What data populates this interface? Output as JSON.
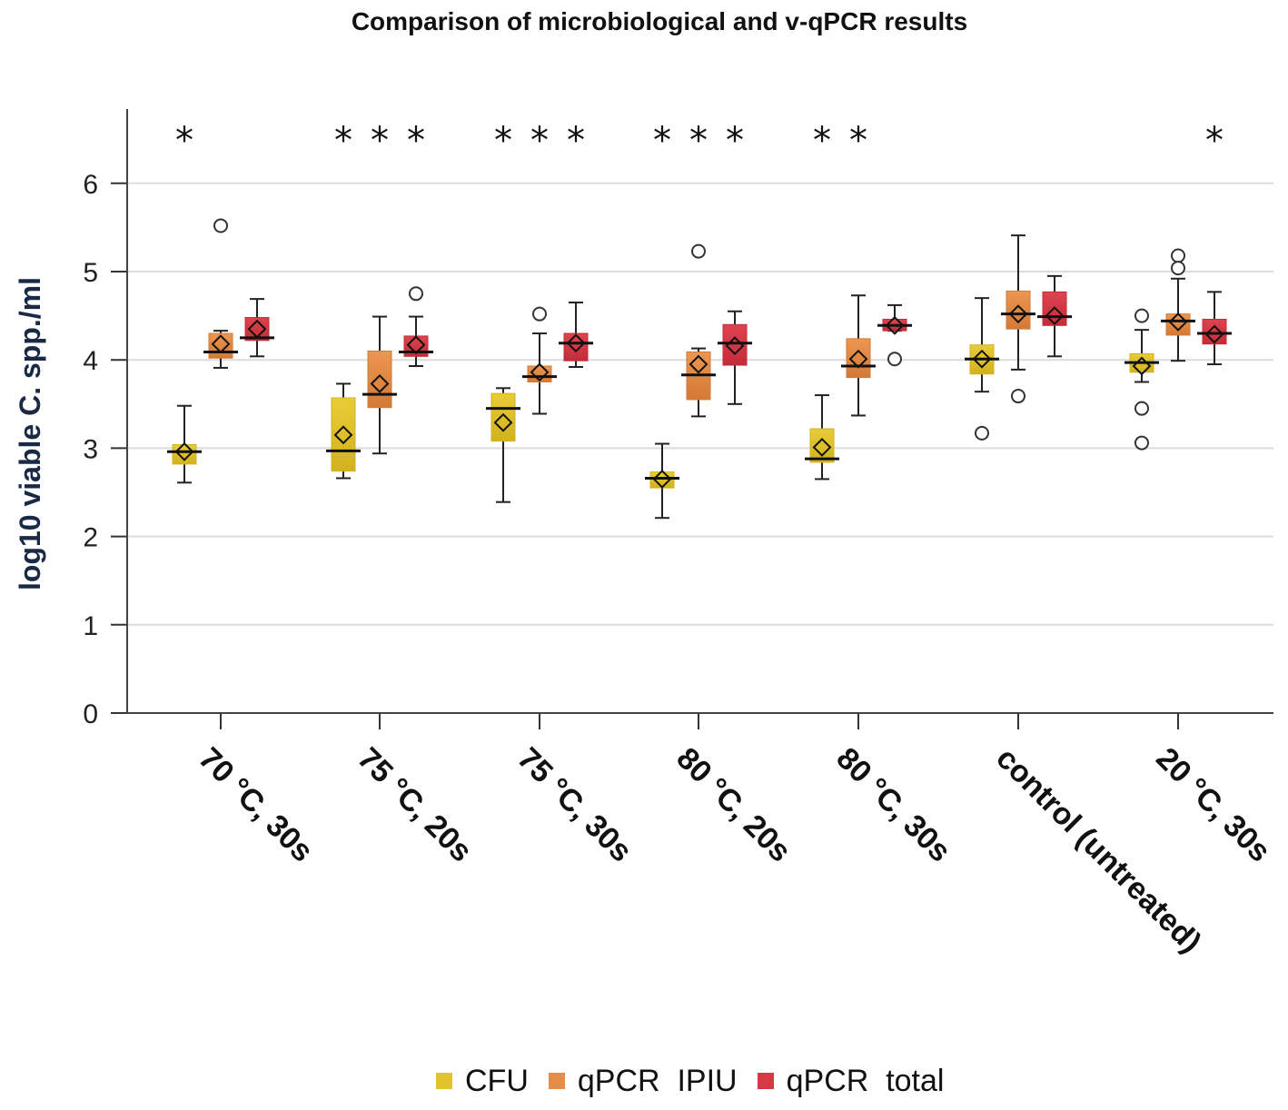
{
  "chart_data": {
    "type": "boxplot",
    "title": "Comparison of microbiological and v-qPCR results",
    "ylabel": "log10 viable C. spp./ml",
    "xlabel": "",
    "ylim": [
      0,
      6.8
    ],
    "yticks": [
      0,
      1,
      2,
      3,
      4,
      5,
      6
    ],
    "grid": true,
    "legend_position": "bottom",
    "series": [
      {
        "name": "CFU",
        "color": "#e0c42a"
      },
      {
        "name": "qPCR  IPIU",
        "color": "#e58c48"
      },
      {
        "name": "qPCR  total",
        "color": "#d63844"
      }
    ],
    "categories": [
      {
        "label": "70 °C, 30s",
        "significance": [
          "*",
          "",
          ""
        ],
        "boxes": [
          {
            "min": 2.61,
            "q1": 2.82,
            "median": 2.96,
            "q3": 3.04,
            "max": 3.48,
            "mean": 2.96,
            "outliers": []
          },
          {
            "min": 3.91,
            "q1": 4.02,
            "median": 4.09,
            "q3": 4.3,
            "max": 4.33,
            "mean": 4.18,
            "outliers": [
              5.52
            ]
          },
          {
            "min": 4.04,
            "q1": 4.22,
            "median": 4.25,
            "q3": 4.48,
            "max": 4.69,
            "mean": 4.35,
            "outliers": []
          }
        ]
      },
      {
        "label": "75 °C, 20s",
        "significance": [
          "*",
          "*",
          "*"
        ],
        "boxes": [
          {
            "min": 2.66,
            "q1": 2.74,
            "median": 2.97,
            "q3": 3.57,
            "max": 3.73,
            "mean": 3.15,
            "outliers": []
          },
          {
            "min": 2.94,
            "q1": 3.46,
            "median": 3.61,
            "q3": 4.1,
            "max": 4.49,
            "mean": 3.73,
            "outliers": []
          },
          {
            "min": 3.93,
            "q1": 4.04,
            "median": 4.09,
            "q3": 4.27,
            "max": 4.49,
            "mean": 4.17,
            "outliers": [
              4.75
            ]
          }
        ]
      },
      {
        "label": "75 °C, 30s",
        "significance": [
          "*",
          "*",
          "*"
        ],
        "boxes": [
          {
            "min": 2.39,
            "q1": 3.08,
            "median": 3.45,
            "q3": 3.62,
            "max": 3.68,
            "mean": 3.29,
            "outliers": []
          },
          {
            "min": 3.39,
            "q1": 3.75,
            "median": 3.81,
            "q3": 3.93,
            "max": 4.3,
            "mean": 3.86,
            "outliers": [
              4.52
            ]
          },
          {
            "min": 3.92,
            "q1": 3.99,
            "median": 4.19,
            "q3": 4.3,
            "max": 4.65,
            "mean": 4.19,
            "outliers": []
          }
        ]
      },
      {
        "label": "80 °C, 20s",
        "significance": [
          "*",
          "*",
          "*"
        ],
        "boxes": [
          {
            "min": 2.21,
            "q1": 2.55,
            "median": 2.66,
            "q3": 2.73,
            "max": 3.05,
            "mean": 2.65,
            "outliers": []
          },
          {
            "min": 3.36,
            "q1": 3.55,
            "median": 3.83,
            "q3": 4.09,
            "max": 4.13,
            "mean": 3.95,
            "outliers": [
              5.23
            ]
          },
          {
            "min": 3.5,
            "q1": 3.94,
            "median": 4.19,
            "q3": 4.4,
            "max": 4.55,
            "mean": 4.16,
            "outliers": []
          }
        ]
      },
      {
        "label": "80 °C, 30s",
        "significance": [
          "*",
          "*",
          ""
        ],
        "boxes": [
          {
            "min": 2.65,
            "q1": 2.84,
            "median": 2.88,
            "q3": 3.22,
            "max": 3.6,
            "mean": 3.01,
            "outliers": []
          },
          {
            "min": 3.37,
            "q1": 3.8,
            "median": 3.93,
            "q3": 4.24,
            "max": 4.73,
            "mean": 4.01,
            "outliers": []
          },
          {
            "min": 4.33,
            "q1": 4.33,
            "median": 4.39,
            "q3": 4.46,
            "max": 4.62,
            "mean": 4.39,
            "outliers": [
              4.01
            ]
          }
        ]
      },
      {
        "label": "control (untreated)",
        "significance": [
          "",
          "",
          ""
        ],
        "boxes": [
          {
            "min": 3.64,
            "q1": 3.84,
            "median": 4.01,
            "q3": 4.17,
            "max": 4.7,
            "mean": 4.01,
            "outliers": [
              3.17
            ]
          },
          {
            "min": 3.89,
            "q1": 4.35,
            "median": 4.52,
            "q3": 4.78,
            "max": 5.41,
            "mean": 4.52,
            "outliers": [
              3.59
            ]
          },
          {
            "min": 4.04,
            "q1": 4.39,
            "median": 4.49,
            "q3": 4.77,
            "max": 4.95,
            "mean": 4.5,
            "outliers": []
          }
        ]
      },
      {
        "label": "20 °C, 30s",
        "significance": [
          "",
          "",
          "*"
        ],
        "boxes": [
          {
            "min": 3.75,
            "q1": 3.86,
            "median": 3.97,
            "q3": 4.07,
            "max": 4.34,
            "mean": 3.93,
            "outliers": [
              4.5,
              3.45,
              3.06
            ]
          },
          {
            "min": 3.99,
            "q1": 4.28,
            "median": 4.44,
            "q3": 4.52,
            "max": 4.92,
            "mean": 4.43,
            "outliers": [
              5.18,
              5.04
            ]
          },
          {
            "min": 3.95,
            "q1": 4.18,
            "median": 4.3,
            "q3": 4.46,
            "max": 4.77,
            "mean": 4.29,
            "outliers": []
          }
        ]
      }
    ]
  }
}
